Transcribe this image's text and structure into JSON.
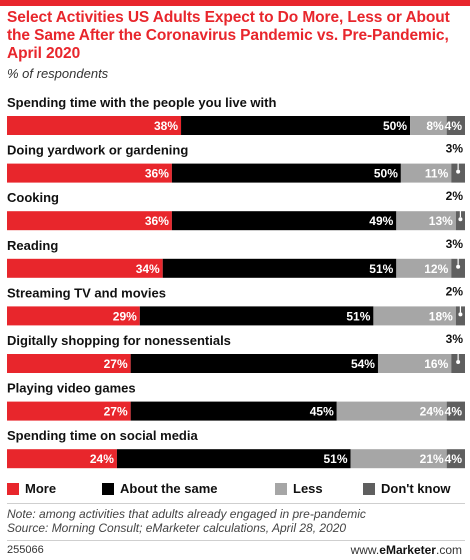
{
  "title": "Select Activities US Adults Expect to Do More, Less or About the Same After the Coronavirus Pandemic vs. Pre-Pandemic, April 2020",
  "subtitle": "% of respondents",
  "colors": {
    "more": "#e8262c",
    "same": "#000000",
    "less": "#a6a6a6",
    "dont_know": "#5f5f5f",
    "accent": "#e8262c"
  },
  "chart_data": {
    "type": "bar",
    "stacked": true,
    "orientation": "horizontal",
    "categories": [
      "Spending time with the people you live with",
      "Doing yardwork or gardening",
      "Cooking",
      "Reading",
      "Streaming TV and movies",
      "Digitally shopping for nonessentials",
      "Playing video games",
      "Spending time on social media"
    ],
    "series": [
      {
        "name": "More",
        "values": [
          38,
          36,
          36,
          34,
          29,
          27,
          27,
          24
        ],
        "labels": [
          "38%",
          "36%",
          "36%",
          "34%",
          "29%",
          "27%",
          "27%",
          "24%"
        ]
      },
      {
        "name": "About the same",
        "values": [
          50,
          50,
          49,
          51,
          51,
          54,
          45,
          51
        ],
        "labels": [
          "50%",
          "50%",
          "49%",
          "51%",
          "51%",
          "54%",
          "45%",
          "51%"
        ]
      },
      {
        "name": "Less",
        "values": [
          8,
          11,
          13,
          12,
          18,
          16,
          24,
          21
        ],
        "labels": [
          "8%",
          "11%",
          "13%",
          "12%",
          "18%",
          "16%",
          "24%",
          "21%"
        ]
      },
      {
        "name": "Don't know",
        "values": [
          4,
          3,
          2,
          3,
          2,
          3,
          4,
          4
        ],
        "labels": [
          "4%",
          "3%",
          "2%",
          "3%",
          "2%",
          "3%",
          "4%",
          "4%"
        ]
      }
    ],
    "legend_position": "bottom"
  },
  "legend": {
    "more": "More",
    "same": "About the same",
    "less": "Less",
    "dont_know": "Don't know"
  },
  "note": "Note: among activities that adults already engaged in pre-pandemic",
  "source": "Source: Morning Consult; eMarketer calculations, April 28, 2020",
  "footer": {
    "id": "255066",
    "brand_prefix": "www.",
    "brand_e": "e",
    "brand_rest": "Marketer",
    "brand_suffix": ".com"
  }
}
